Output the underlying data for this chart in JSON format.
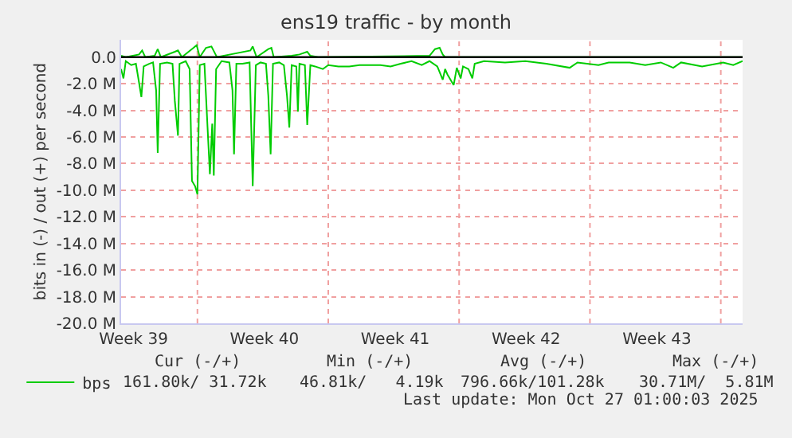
{
  "chart_data": {
    "type": "line",
    "title": "ens19 traffic - by month",
    "ylabel": "bits in (-) / out (+) per second",
    "xlim": [
      "2025-09-24T22:00",
      "2025-10-28T04:00"
    ],
    "ylim": [
      -20,
      1.3
    ],
    "xticks": [
      {
        "value": "2025-09-25T14:00",
        "label": "Week 39"
      },
      {
        "value": "2025-10-02T14:00",
        "label": "Week 40"
      },
      {
        "value": "2025-10-09T14:00",
        "label": "Week 41"
      },
      {
        "value": "2025-10-16T14:00",
        "label": "Week 42"
      },
      {
        "value": "2025-10-23T14:00",
        "label": "Week 43"
      },
      {
        "value": "2025-09-29",
        "label": null
      },
      {
        "value": "2025-10-06",
        "label": null
      },
      {
        "value": "2025-10-13",
        "label": null
      },
      {
        "value": "2025-10-20",
        "label": null
      },
      {
        "value": "2025-10-27",
        "label": null
      }
    ],
    "yticks": [
      {
        "value": 0,
        "label": "0.0"
      },
      {
        "value": -2,
        "label": "-2.0 M"
      },
      {
        "value": -4,
        "label": "-4.0 M"
      },
      {
        "value": -6,
        "label": "-6.0 M"
      },
      {
        "value": -8,
        "label": "-8.0 M"
      },
      {
        "value": -10,
        "label": "-10.0 M"
      },
      {
        "value": -12,
        "label": "-12.0 M"
      },
      {
        "value": -14,
        "label": "-14.0 M"
      },
      {
        "value": -16,
        "label": "-16.0 M"
      },
      {
        "value": -18,
        "label": "-18.0 M"
      },
      {
        "value": -20,
        "label": "-20.0 M"
      }
    ],
    "grid": true,
    "legend": "bottom left",
    "line_style": "solid",
    "marker": "none",
    "ref_lines": [
      {
        "axis": "y",
        "value": 0,
        "label": null,
        "color": "#000000"
      }
    ],
    "series": [
      {
        "name": "bps",
        "color": "#00cc00",
        "x": [
          "2025-09-24T22:00",
          "2025-09-25T01:00",
          "2025-09-25T04:00",
          "2025-09-25T11:00",
          "2025-09-25T17:00",
          "2025-09-25T21:00",
          "2025-09-26T00:00",
          "2025-09-26T03:00",
          "2025-09-26T10:00",
          "2025-09-26T15:00",
          "2025-09-26T19:00",
          "2025-09-26T21:00",
          "2025-09-27T00:00",
          "2025-09-27T09:00",
          "2025-09-27T16:00",
          "2025-09-27T19:00",
          "2025-09-27T23:00",
          "2025-09-28T01:00",
          "2025-09-28T09:00",
          "2025-09-28T14:00",
          "2025-09-28T17:00",
          "2025-09-28T21:00",
          "2025-09-29T00:00",
          "2025-09-29T03:00",
          "2025-09-29T09:00",
          "2025-09-29T13:00",
          "2025-09-29T16:00",
          "2025-09-29T19:00",
          "2025-09-29T21:00",
          "2025-09-30T00:00",
          "2025-09-30T07:00",
          "2025-09-30T17:00",
          "2025-09-30T21:00",
          "2025-09-30T23:00",
          "2025-10-01T02:00",
          "2025-10-01T10:00",
          "2025-10-01T19:00",
          "2025-10-01T23:00",
          "2025-10-02T03:00",
          "2025-10-02T09:00",
          "2025-10-02T16:00",
          "2025-10-02T19:00",
          "2025-10-02T22:00",
          "2025-10-03T01:00",
          "2025-10-03T09:00",
          "2025-10-03T15:00",
          "2025-10-03T19:00",
          "2025-10-03T22:00",
          "2025-10-04T01:00",
          "2025-10-04T07:00",
          "2025-10-04T09:00",
          "2025-10-04T11:00",
          "2025-10-04T18:00",
          "2025-10-04T21:00",
          "2025-10-05T01:00",
          "2025-10-05T07:00",
          "2025-10-05T17:00",
          "2025-10-06T00:00",
          "2025-10-06T13:00",
          "2025-10-07T03:00",
          "2025-10-07T16:00",
          "2025-10-08T05:00",
          "2025-10-08T19:00",
          "2025-10-09T08:00",
          "2025-10-09T21:00",
          "2025-10-10T11:00",
          "2025-10-11T00:00",
          "2025-10-11T10:00",
          "2025-10-11T20:00",
          "2025-10-12T03:00",
          "2025-10-12T06:00",
          "2025-10-12T09:00",
          "2025-10-12T15:00",
          "2025-10-12T17:00",
          "2025-10-12T21:00",
          "2025-10-13T02:00",
          "2025-10-13T05:00",
          "2025-10-13T12:00",
          "2025-10-13T17:00",
          "2025-10-13T20:00",
          "2025-10-14T08:00",
          "2025-10-15T11:00",
          "2025-10-16T13:00",
          "2025-10-17T16:00",
          "2025-10-18T22:00",
          "2025-10-19T08:00",
          "2025-10-20T11:00",
          "2025-10-21T00:00",
          "2025-10-22T03:00",
          "2025-10-22T23:00",
          "2025-10-23T19:00",
          "2025-10-24T11:00",
          "2025-10-24T21:00",
          "2025-10-26T00:00",
          "2025-10-27T03:00",
          "2025-10-27T16:00",
          "2025-10-28T04:00"
        ],
        "values": [
          -0.9,
          -1.6,
          -0.3,
          -0.6,
          -0.5,
          -1.9,
          -3.0,
          -0.7,
          -0.5,
          -0.4,
          -2.5,
          -7.2,
          -0.5,
          -0.4,
          -0.5,
          -3.3,
          -5.9,
          -0.5,
          -0.3,
          -0.9,
          -9.3,
          -9.7,
          -10.3,
          -0.6,
          -0.5,
          -5.3,
          -8.8,
          -5.0,
          -8.9,
          -0.9,
          -0.3,
          -0.4,
          -2.5,
          -7.3,
          -0.5,
          -0.5,
          -0.4,
          -9.7,
          -0.6,
          -0.4,
          -0.5,
          -2.9,
          -7.3,
          -0.5,
          -0.4,
          -0.6,
          -2.9,
          -5.3,
          -0.6,
          -0.7,
          -4.1,
          -0.5,
          -0.6,
          -5.1,
          -0.6,
          -0.7,
          -0.9,
          -0.6,
          -0.7,
          -0.7,
          -0.6,
          -0.6,
          -0.6,
          -0.7,
          -0.5,
          -0.3,
          -0.6,
          -0.3,
          -0.7,
          -1.7,
          -0.9,
          -1.3,
          -1.9,
          -2.1,
          -0.8,
          -1.6,
          -0.7,
          -0.9,
          -1.6,
          -0.5,
          -0.3,
          -0.4,
          -0.3,
          -0.5,
          -0.8,
          -0.4,
          -0.6,
          -0.4,
          -0.4,
          -0.6,
          -0.4,
          -0.8,
          -0.4,
          -0.7,
          -0.4,
          -0.6,
          -0.3
        ]
      },
      {
        "color": "#00cc00",
        "x": [
          "2025-09-24T22:00",
          "2025-09-25T04:00",
          "2025-09-25T21:00",
          "2025-09-26T01:00",
          "2025-09-26T05:00",
          "2025-09-26T17:00",
          "2025-09-26T21:00",
          "2025-09-27T01:00",
          "2025-09-27T19:00",
          "2025-09-27T23:00",
          "2025-09-28T04:00",
          "2025-09-28T19:00",
          "2025-09-28T23:00",
          "2025-09-29T03:00",
          "2025-09-29T11:00",
          "2025-09-29T18:00",
          "2025-09-30T01:00",
          "2025-10-01T20:00",
          "2025-10-01T23:00",
          "2025-10-02T04:00",
          "2025-10-02T19:00",
          "2025-10-02T23:00",
          "2025-10-03T02:00",
          "2025-10-04T01:00",
          "2025-10-04T11:00",
          "2025-10-04T21:00",
          "2025-10-05T01:00",
          "2025-10-05T11:00",
          "2025-10-11T10:00",
          "2025-10-11T17:00",
          "2025-10-11T23:00",
          "2025-10-12T03:00",
          "2025-10-12T06:00",
          "2025-10-28T04:00"
        ],
        "values": [
          0.1,
          0.0,
          0.2,
          0.5,
          0.0,
          0.1,
          0.6,
          0.0,
          0.4,
          0.5,
          0.0,
          0.7,
          0.9,
          0.0,
          0.7,
          0.8,
          0.0,
          0.5,
          0.8,
          0.0,
          0.6,
          0.7,
          0.0,
          0.1,
          0.2,
          0.4,
          0.1,
          0.0,
          0.1,
          0.6,
          0.7,
          0.2,
          0.0,
          0.0
        ]
      }
    ],
    "annotations": [
      "Cur (-/+)",
      "Min (-/+)",
      "Avg (-/+)",
      "Max (-/+)",
      "161.80k/ 31.72k",
      "46.81k/   4.19k",
      "796.66k/101.28k",
      "30.71M/  5.81M",
      "Last update: Mon Oct 27 01:00:03 2025"
    ]
  }
}
